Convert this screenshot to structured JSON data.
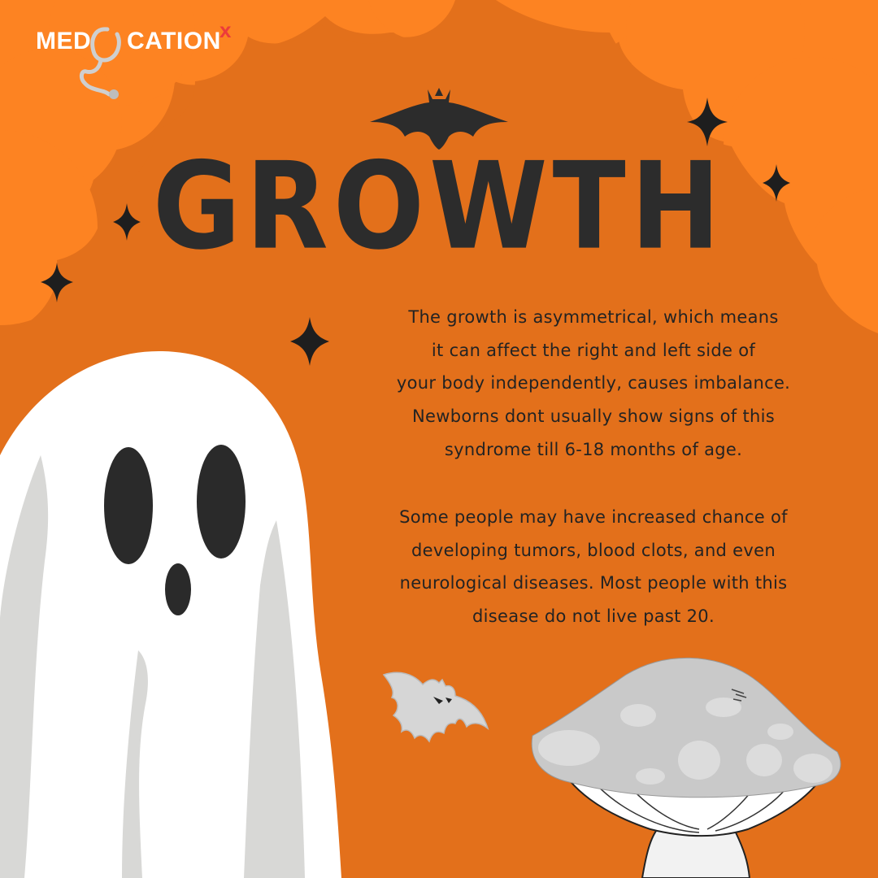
{
  "brand": {
    "left": "MED",
    "right": "CATION",
    "mark": "x"
  },
  "title": "GROWTH",
  "paragraph_1": [
    "The growth is asymmetrical, which means",
    "it can affect the right and left side of",
    "your body independently, causes imbalance.",
    "Newborns dont usually show signs of this",
    "syndrome till 6-18 months of age."
  ],
  "paragraph_2": [
    "Some people may have increased chance of",
    "developing tumors, blood clots, and even",
    "neurological diseases. Most people with this",
    "disease do not live past 20."
  ],
  "colors": {
    "background": "#e3701b",
    "cloud": "#fd8322",
    "text": "#232323",
    "ghost": "#ffffff",
    "mushroom": "#c9c9c9",
    "logo_accent": "#ec3b3b"
  },
  "decorations": [
    "bat-icon",
    "sparkle-icon",
    "ghost-illustration",
    "mushroom-illustration",
    "stethoscope-icon"
  ]
}
